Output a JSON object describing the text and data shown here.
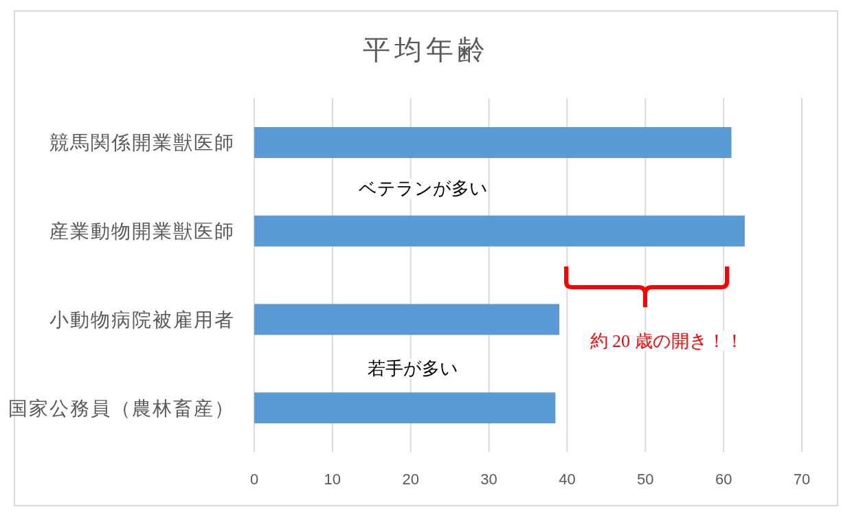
{
  "chart_data": {
    "type": "bar",
    "title": "平均年齢",
    "categories": [
      "競馬関係開業獣医師",
      "産業動物開業獣医師",
      "小動物病院被雇用者",
      "国家公務員（農林畜産）"
    ],
    "values": [
      61.0,
      62.7,
      39.0,
      38.5
    ],
    "color": "#5b9bd5",
    "orientation": "horizontal",
    "xlim": [
      0,
      70
    ],
    "xticks": [
      0,
      10,
      20,
      30,
      40,
      50,
      60,
      70
    ],
    "grid": "x",
    "annotations": [
      "ベテランが多い",
      "若手が多い",
      "約 20 歳の開き！！"
    ]
  }
}
